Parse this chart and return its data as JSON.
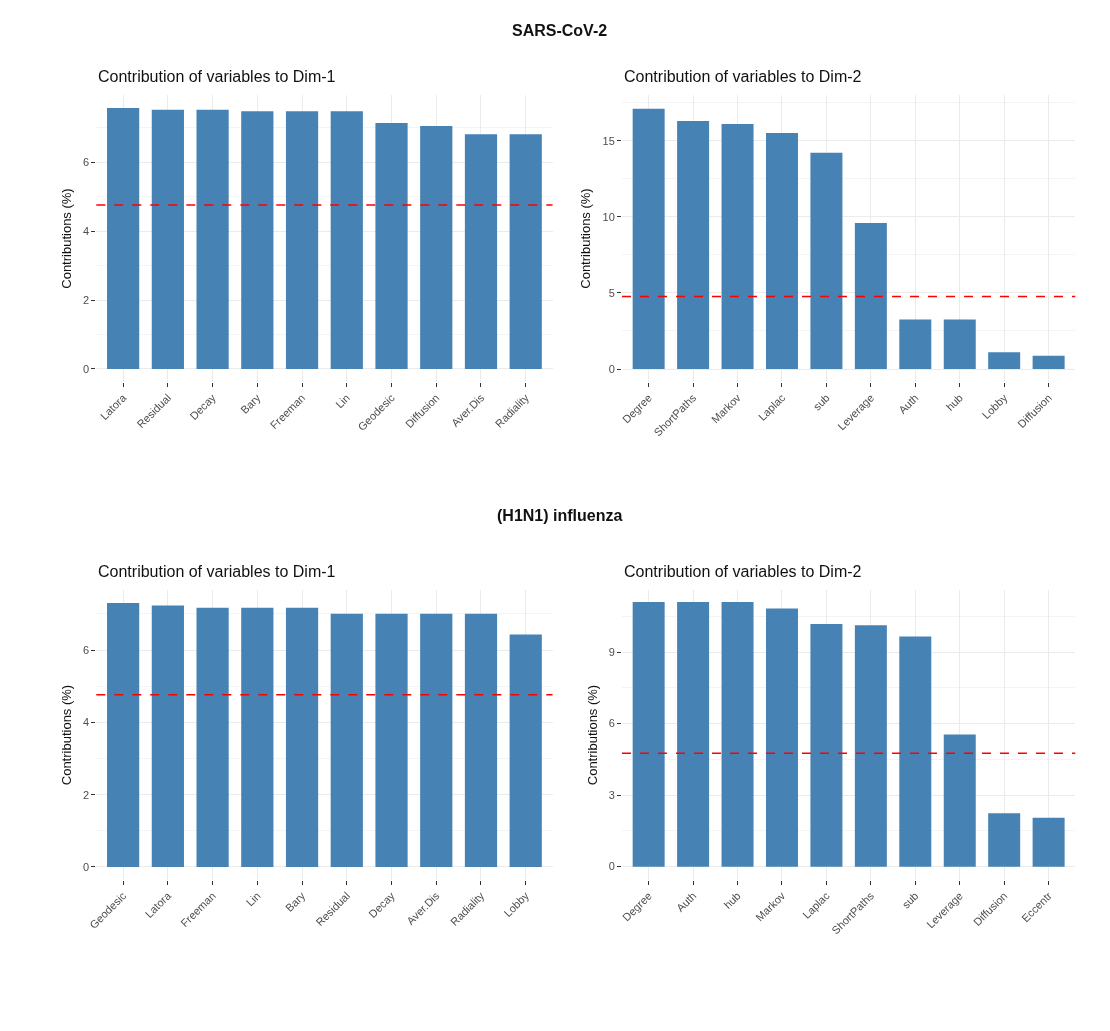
{
  "chart_data": [
    {
      "type": "bar",
      "title": "Contribution of variables to Dim-1",
      "ylabel": "Contributions (%)",
      "annotations": [
        "SARS-CoV-2"
      ],
      "categories": [
        "Latora",
        "Residual",
        "Decay",
        "Bary",
        "Freeman",
        "Lin",
        "Geodesic",
        "Diffusion",
        "Aver.Dis",
        "Radiality"
      ],
      "values": [
        7.57,
        7.52,
        7.52,
        7.48,
        7.48,
        7.48,
        7.14,
        7.05,
        6.81,
        6.81
      ],
      "color": "#4682b4",
      "ylim": [
        -0.38,
        7.95
      ],
      "yticks": [
        0,
        2,
        4,
        6
      ],
      "grid": true,
      "ref_lines": [
        {
          "axis": "y",
          "value": 4.76,
          "color": "#ff0000",
          "line_style": "dashed"
        }
      ]
    },
    {
      "type": "bar",
      "title": "Contribution of variables to Dim-2",
      "ylabel": "Contributions (%)",
      "categories": [
        "Degree",
        "ShortPaths",
        "Markov",
        "Laplac",
        "sub",
        "Leverage",
        "Auth",
        "hub",
        "Lobby",
        "Diffusion"
      ],
      "values": [
        17.1,
        16.3,
        16.1,
        15.5,
        14.2,
        9.6,
        3.25,
        3.25,
        1.1,
        0.87
      ],
      "color": "#4682b4",
      "ylim": [
        -0.85,
        18.0
      ],
      "yticks": [
        0,
        5,
        10,
        15
      ],
      "grid": true,
      "ref_lines": [
        {
          "axis": "y",
          "value": 4.76,
          "color": "#ff0000",
          "line_style": "dashed"
        }
      ]
    },
    {
      "type": "bar",
      "title": "Contribution of variables to Dim-1",
      "ylabel": "Contributions (%)",
      "annotations": [
        "(H1N1) influenza"
      ],
      "categories": [
        "Geodesic",
        "Latora",
        "Freeman",
        "Lin",
        "Bary",
        "Residual",
        "Decay",
        "Aver.Dis",
        "Radiality",
        "Lobby"
      ],
      "values": [
        7.3,
        7.23,
        7.17,
        7.17,
        7.17,
        7.0,
        7.0,
        7.0,
        7.0,
        6.43
      ],
      "color": "#4682b4",
      "ylim": [
        -0.36,
        7.66
      ],
      "yticks": [
        0,
        2,
        4,
        6
      ],
      "grid": true,
      "ref_lines": [
        {
          "axis": "y",
          "value": 4.76,
          "color": "#ff0000",
          "line_style": "dashed"
        }
      ]
    },
    {
      "type": "bar",
      "title": "Contribution of variables to Dim-2",
      "ylabel": "Contributions (%)",
      "categories": [
        "Degree",
        "Auth",
        "hub",
        "Markov",
        "Laplac",
        "ShortPaths",
        "sub",
        "Leverage",
        "Diffusion",
        "Eccentr"
      ],
      "values": [
        11.1,
        11.1,
        11.1,
        10.82,
        10.17,
        10.12,
        9.65,
        5.54,
        2.24,
        2.05
      ],
      "color": "#4682b4",
      "ylim": [
        -0.56,
        11.6
      ],
      "yticks": [
        0,
        3,
        6,
        9
      ],
      "grid": true,
      "ref_lines": [
        {
          "axis": "y",
          "value": 4.76,
          "color": "#ff0000",
          "line_style": "dashed"
        }
      ]
    }
  ]
}
